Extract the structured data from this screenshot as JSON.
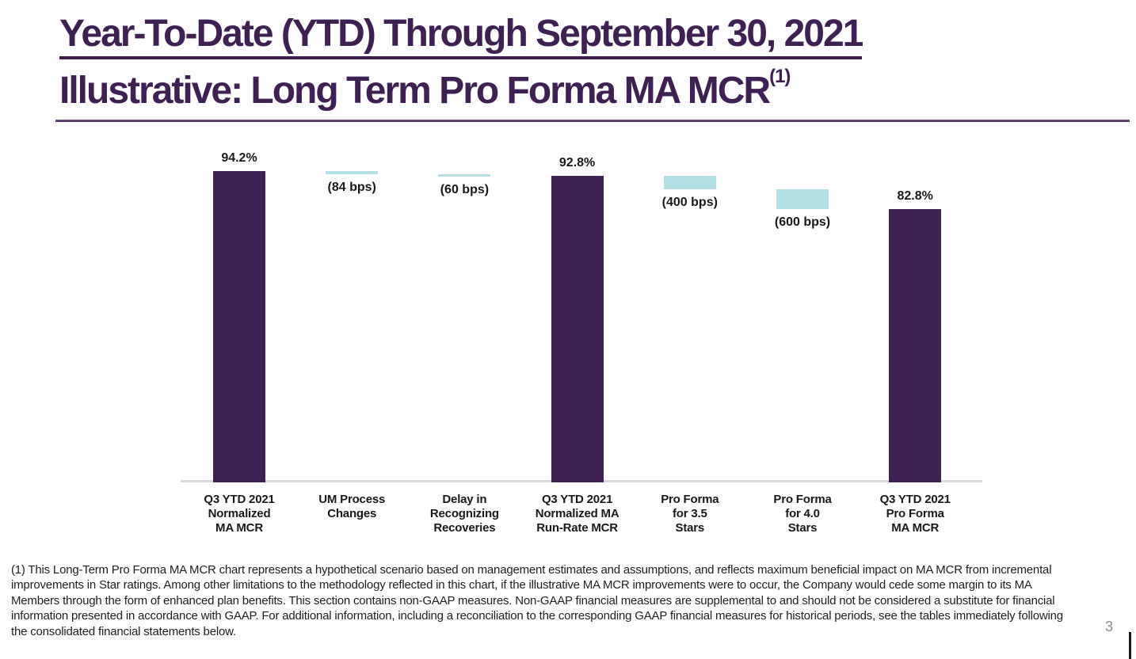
{
  "slide": {
    "title_line1": "Year-To-Date (YTD) Through September 30, 2021",
    "title_line2": "Illustrative: Long Term Pro Forma MA MCR",
    "title_superscript": "(1)",
    "footnote": "(1) This Long-Term Pro Forma MA MCR chart represents a hypothetical scenario based on management estimates and assumptions, and reflects maximum beneficial impact on MA MCR from incremental improvements in Star ratings. Among other limitations to the methodology reflected in this chart, if the illustrative MA MCR improvements were to occur, the Company would cede some margin to its MA Members through the form of enhanced plan benefits. This section contains non-GAAP measures. Non-GAAP financial measures are supplemental to and should not be considered a substitute for financial information presented in accordance with GAAP. For additional information, including a reconciliation to the corresponding GAAP financial measures for historical periods, see the tables immediately following the consolidated financial statements below.",
    "page_number": "3"
  },
  "chart_data": {
    "type": "bar",
    "subtype": "waterfall",
    "title": "",
    "xlabel": "",
    "ylabel": "",
    "ylim": [
      0,
      100
    ],
    "grid": false,
    "legend": false,
    "unit": "percent MCR",
    "categories": [
      "Q3 YTD 2021\nNormalized\nMA MCR",
      "UM Process\nChanges",
      "Delay in\nRecognizing\nRecoveries",
      "Q3 YTD 2021\nNormalized MA\nRun-Rate MCR",
      "Pro Forma\nfor 3.5\nStars",
      "Pro Forma\nfor 4.0\nStars",
      "Q3 YTD 2021\nPro Forma\nMA MCR"
    ],
    "steps": [
      {
        "label": "Q3 YTD 2021\nNormalized\nMA MCR",
        "kind": "total",
        "value": 94.2,
        "display": "94.2%"
      },
      {
        "label": "UM Process\nChanges",
        "kind": "decrease",
        "value": -0.84,
        "display": "(84 bps)"
      },
      {
        "label": "Delay in\nRecognizing\nRecoveries",
        "kind": "decrease",
        "value": -0.6,
        "display": "(60 bps)"
      },
      {
        "label": "Q3 YTD 2021\nNormalized MA\nRun-Rate MCR",
        "kind": "total",
        "value": 92.8,
        "display": "92.8%"
      },
      {
        "label": "Pro Forma\nfor 3.5\nStars",
        "kind": "decrease",
        "value": -4.0,
        "display": "(400 bps)"
      },
      {
        "label": "Pro Forma\nfor 4.0\nStars",
        "kind": "decrease",
        "value": -6.0,
        "display": "(600 bps)"
      },
      {
        "label": "Q3 YTD 2021\nPro Forma\nMA MCR",
        "kind": "total",
        "value": 82.8,
        "display": "82.8%"
      }
    ],
    "colors": {
      "total": "#3d2152",
      "decrease": "#b2e0e4",
      "axis": "#d9d9d9"
    }
  }
}
